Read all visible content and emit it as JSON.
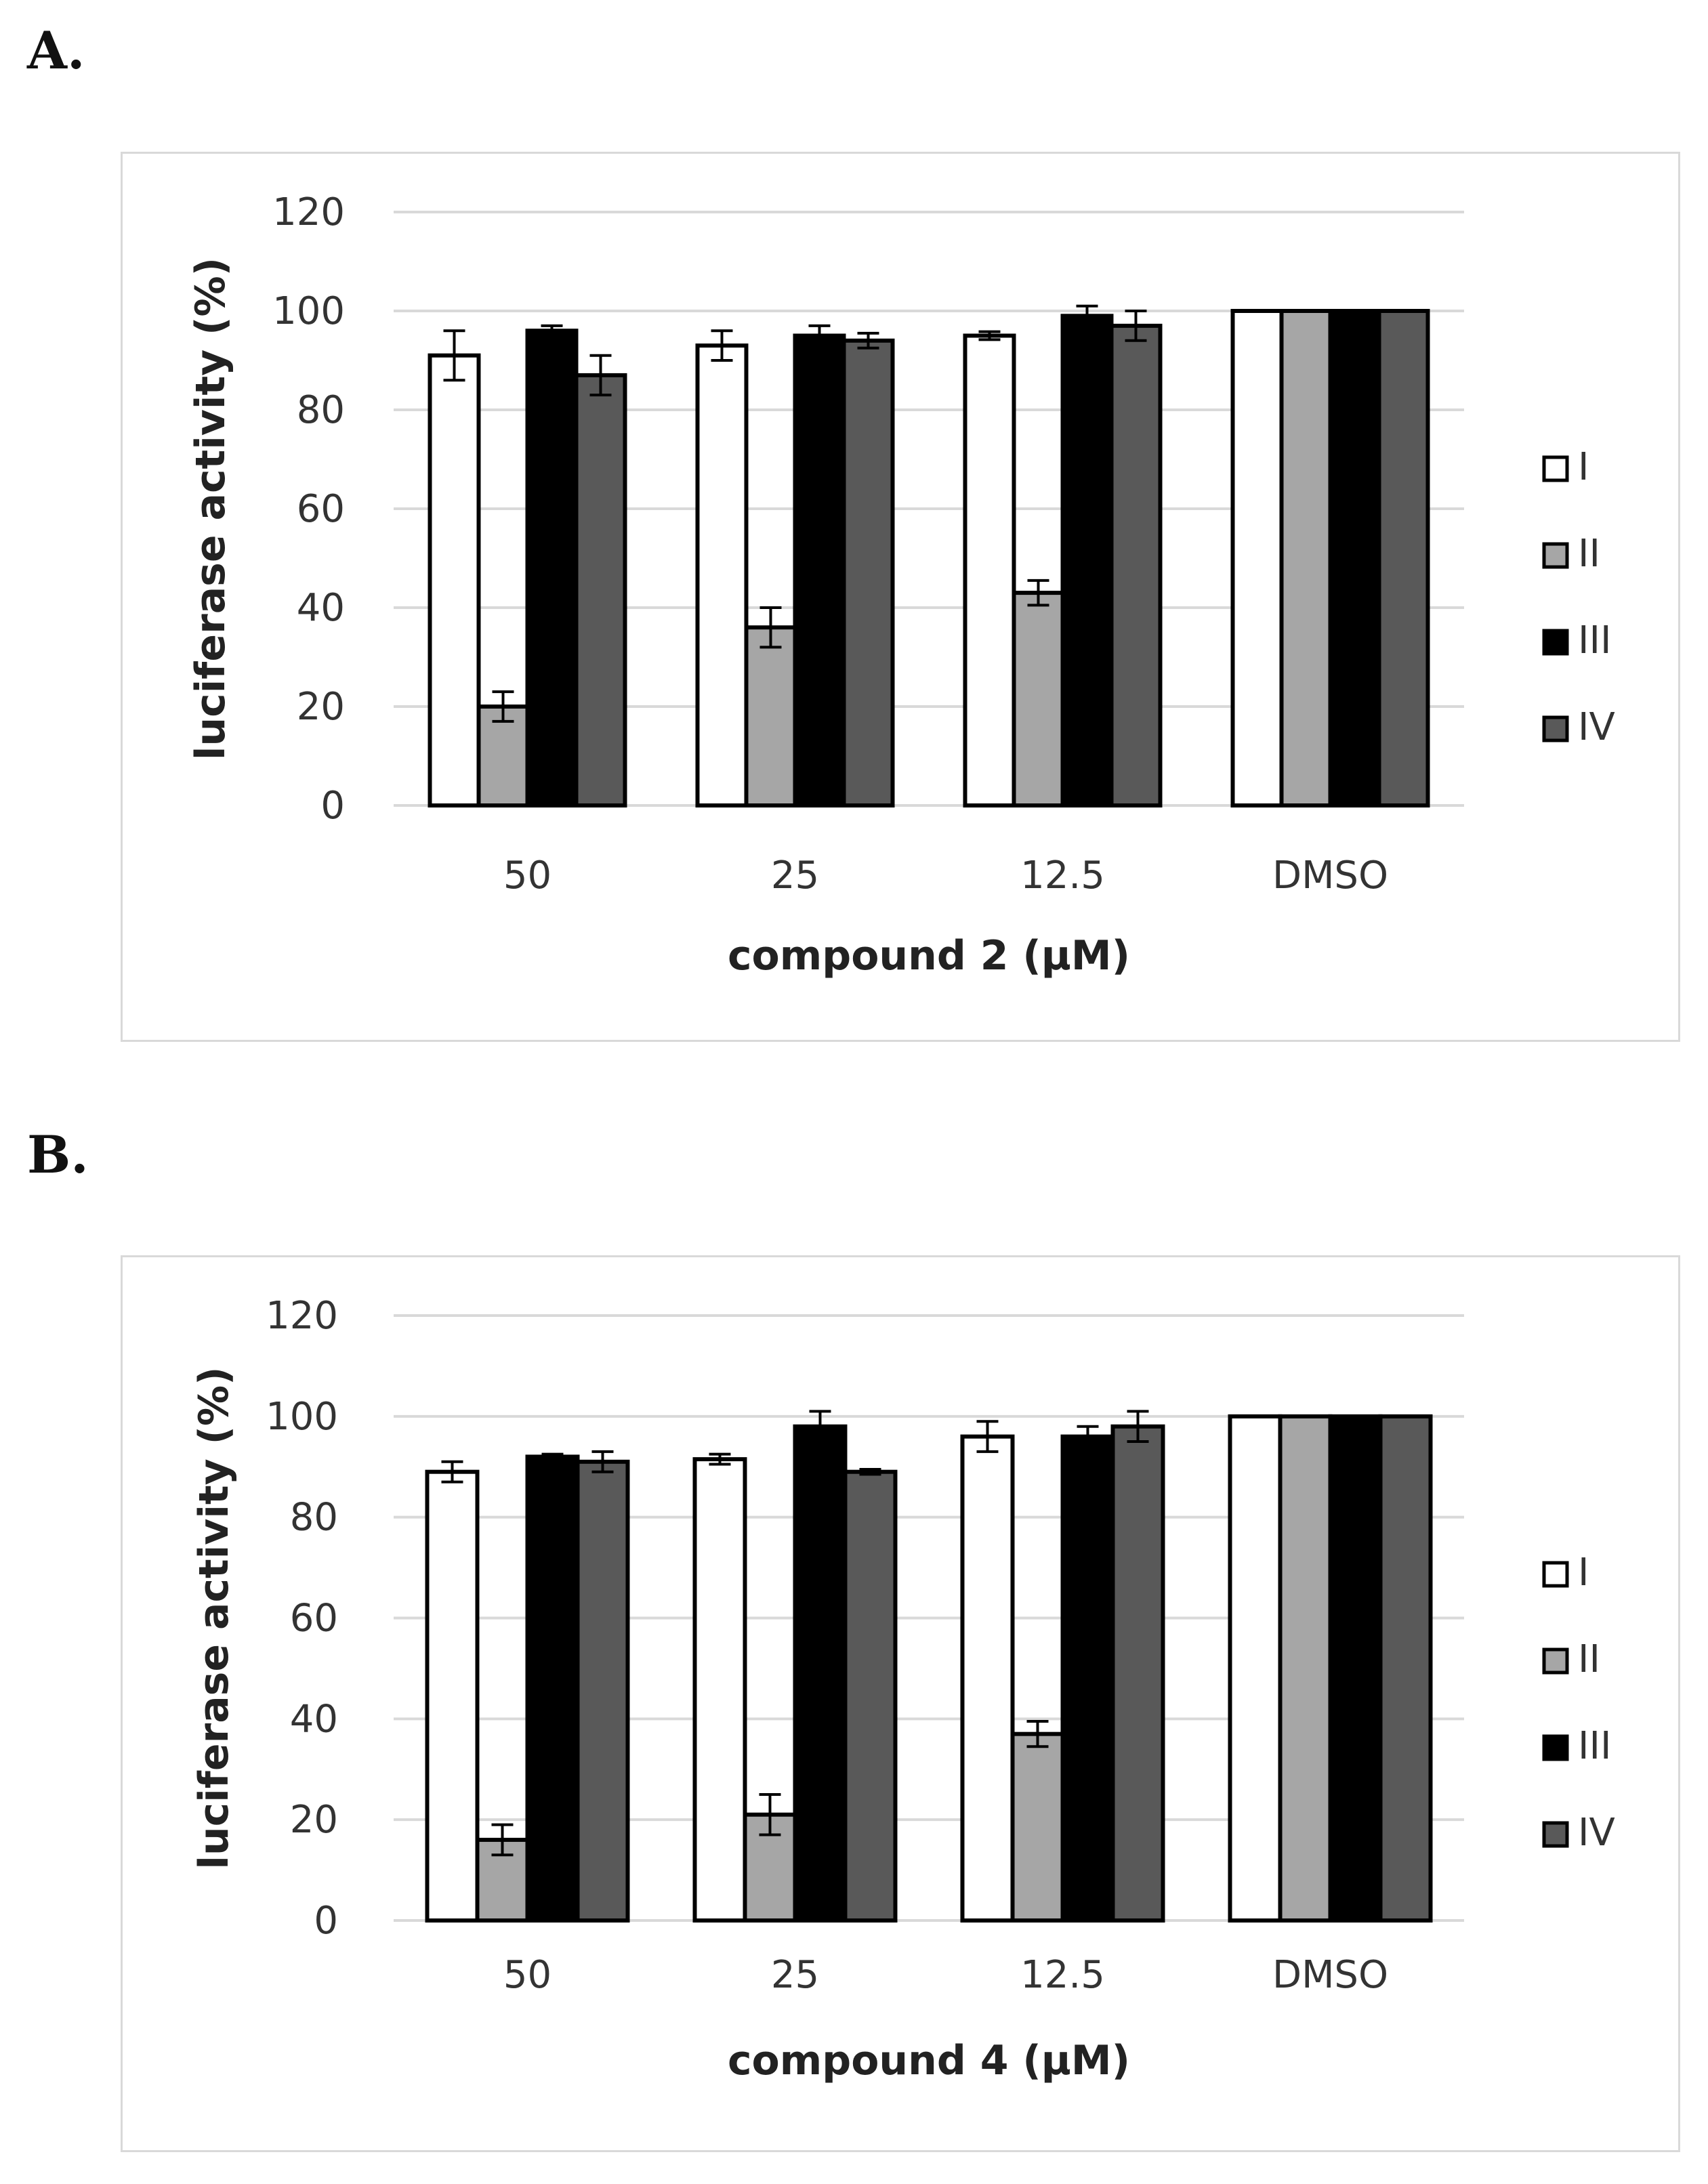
{
  "panels": [
    {
      "label": "A."
    },
    {
      "label": "B."
    }
  ],
  "colors": {
    "I": "#ffffff",
    "II": "#a6a6a6",
    "III": "#000000",
    "IV": "#595959",
    "gridline": "#d9d9d9",
    "bar_outline": "#000000"
  },
  "chart_data": [
    {
      "type": "bar",
      "title": "",
      "xlabel": "compound 2 (µM)",
      "ylabel": "luciferase activity (%)",
      "categories": [
        "50",
        "25",
        "12.5",
        "DMSO"
      ],
      "ylim": [
        0,
        120
      ],
      "yticks": [
        "0",
        "20",
        "40",
        "60",
        "80",
        "100",
        "120"
      ],
      "grid": true,
      "legend_position": "right",
      "series": [
        {
          "name": "I",
          "values": [
            91,
            93,
            95,
            100
          ],
          "errors": [
            5,
            3,
            0.8,
            0
          ]
        },
        {
          "name": "II",
          "values": [
            20,
            36,
            43,
            100
          ],
          "errors": [
            3,
            4,
            2.5,
            0
          ]
        },
        {
          "name": "III",
          "values": [
            96,
            95,
            99,
            100
          ],
          "errors": [
            1,
            2,
            2,
            0
          ]
        },
        {
          "name": "IV",
          "values": [
            87,
            94,
            97,
            100
          ],
          "errors": [
            4,
            1.5,
            3,
            0
          ]
        }
      ]
    },
    {
      "type": "bar",
      "title": "",
      "xlabel": "compound 4 (µM)",
      "ylabel": "luciferase activity (%)",
      "categories": [
        "50",
        "25",
        "12.5",
        "DMSO"
      ],
      "ylim": [
        0,
        120
      ],
      "yticks": [
        "0",
        "20",
        "40",
        "60",
        "80",
        "100",
        "120"
      ],
      "grid": true,
      "legend_position": "right",
      "series": [
        {
          "name": "I",
          "values": [
            89,
            91.5,
            96,
            100
          ],
          "errors": [
            2,
            1,
            3,
            0
          ]
        },
        {
          "name": "II",
          "values": [
            16,
            21,
            37,
            100
          ],
          "errors": [
            3,
            4,
            2.5,
            0
          ]
        },
        {
          "name": "III",
          "values": [
            92,
            98,
            96,
            100
          ],
          "errors": [
            0.5,
            3,
            2,
            0
          ]
        },
        {
          "name": "IV",
          "values": [
            91,
            89,
            98,
            100
          ],
          "errors": [
            2,
            0.5,
            3,
            0
          ]
        }
      ]
    }
  ]
}
